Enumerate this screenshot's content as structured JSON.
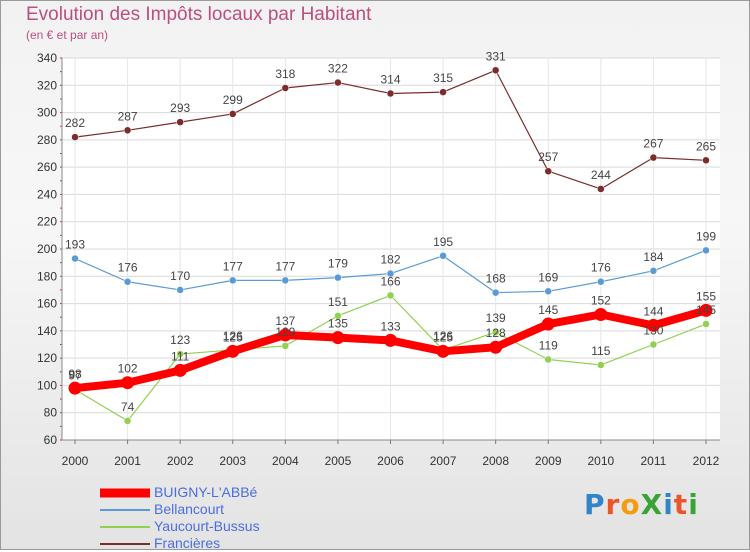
{
  "chart_data": {
    "type": "line",
    "title": "Evolution des Impôts locaux par Habitant",
    "subtitle": "(en € et par an)",
    "xlabel": "",
    "ylabel": "",
    "categories": [
      "2000",
      "2001",
      "2002",
      "2003",
      "2004",
      "2005",
      "2006",
      "2007",
      "2008",
      "2009",
      "2010",
      "2011",
      "2012"
    ],
    "ylim": [
      60,
      340
    ],
    "yticks": [
      60,
      80,
      100,
      120,
      140,
      160,
      180,
      200,
      220,
      240,
      260,
      280,
      300,
      320,
      340
    ],
    "grid": true,
    "legend_position": "bottom-left",
    "series": [
      {
        "name": "BUIGNY-L'ABBé",
        "color": "#ff0000",
        "values": [
          98,
          102,
          111,
          125,
          137,
          135,
          133,
          125,
          128,
          145,
          152,
          144,
          155
        ],
        "labels": [
          "98",
          "102",
          "111",
          "125",
          "137",
          "135",
          "133",
          "125",
          "128",
          "145",
          "152",
          "144",
          "155"
        ]
      },
      {
        "name": "Bellancourt",
        "color": "#5b9bd5",
        "values": [
          193,
          176,
          170,
          177,
          177,
          179,
          182,
          195,
          168,
          169,
          176,
          184,
          199
        ],
        "labels": [
          "193",
          "176",
          "170",
          "177",
          "177",
          "179",
          "182",
          "195",
          "168",
          "169",
          "176",
          "184",
          "199"
        ]
      },
      {
        "name": "Yaucourt-Bussus",
        "color": "#92d050",
        "values": [
          97,
          74,
          123,
          126,
          129,
          151,
          166,
          126,
          139,
          119,
          115,
          130,
          145
        ],
        "labels": [
          "97",
          "74",
          "123",
          "126",
          "129",
          "151",
          "166",
          "126",
          "139",
          "119",
          "115",
          "130",
          "145"
        ]
      },
      {
        "name": "Francières",
        "color": "#7b2c2c",
        "values": [
          282,
          287,
          293,
          299,
          318,
          322,
          314,
          315,
          331,
          257,
          244,
          267,
          265
        ],
        "labels": [
          "282",
          "287",
          "293",
          "299",
          "318",
          "322",
          "314",
          "315",
          "331",
          "257",
          "244",
          "267",
          "265"
        ]
      }
    ]
  },
  "logo": {
    "text": "ProXiti",
    "colors": [
      "#2f85c7",
      "#e8562a",
      "#f39c12",
      "#3aa335",
      "#2f85c7",
      "#e8562a",
      "#3aa335"
    ]
  }
}
